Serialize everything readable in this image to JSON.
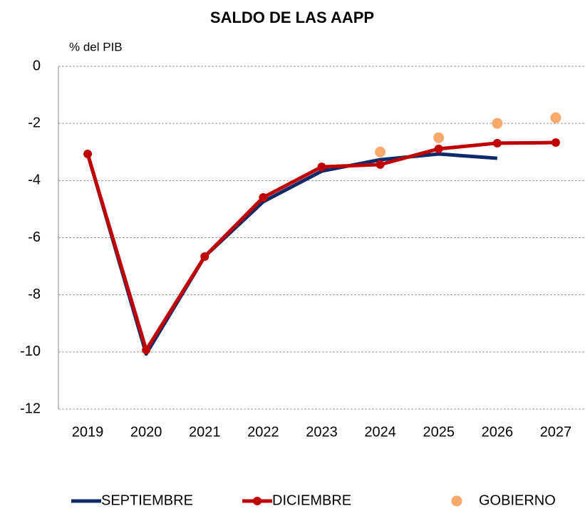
{
  "chart_data": {
    "type": "line",
    "title": "SALDO DE LAS AAPP",
    "y_label": "% del PIB",
    "categories": [
      "2019",
      "2020",
      "2021",
      "2022",
      "2023",
      "2024",
      "2025",
      "2026",
      "2027"
    ],
    "series": [
      {
        "name": "SEPTIEMBRE",
        "color": "#0d2a6b",
        "line": true,
        "markers": false,
        "values": [
          -3.07,
          -10.07,
          -6.66,
          -4.74,
          -3.67,
          -3.27,
          -3.07,
          -3.22,
          null
        ]
      },
      {
        "name": "DICIEMBRE",
        "color": "#c00000",
        "line": true,
        "markers": true,
        "values": [
          -3.07,
          -9.93,
          -6.66,
          -4.59,
          -3.52,
          -3.44,
          -2.89,
          -2.69,
          -2.67
        ]
      },
      {
        "name": "GOBIERNO",
        "color": "#f9a96b",
        "line": false,
        "markers": true,
        "values": [
          null,
          null,
          null,
          null,
          null,
          -3.0,
          -2.5,
          -2.0,
          -1.8
        ]
      }
    ],
    "ylim": [
      -12,
      0
    ],
    "yticks": [
      -12,
      -10,
      -8,
      -6,
      -4,
      -2,
      0
    ],
    "grid": true,
    "legend": "bottom"
  }
}
